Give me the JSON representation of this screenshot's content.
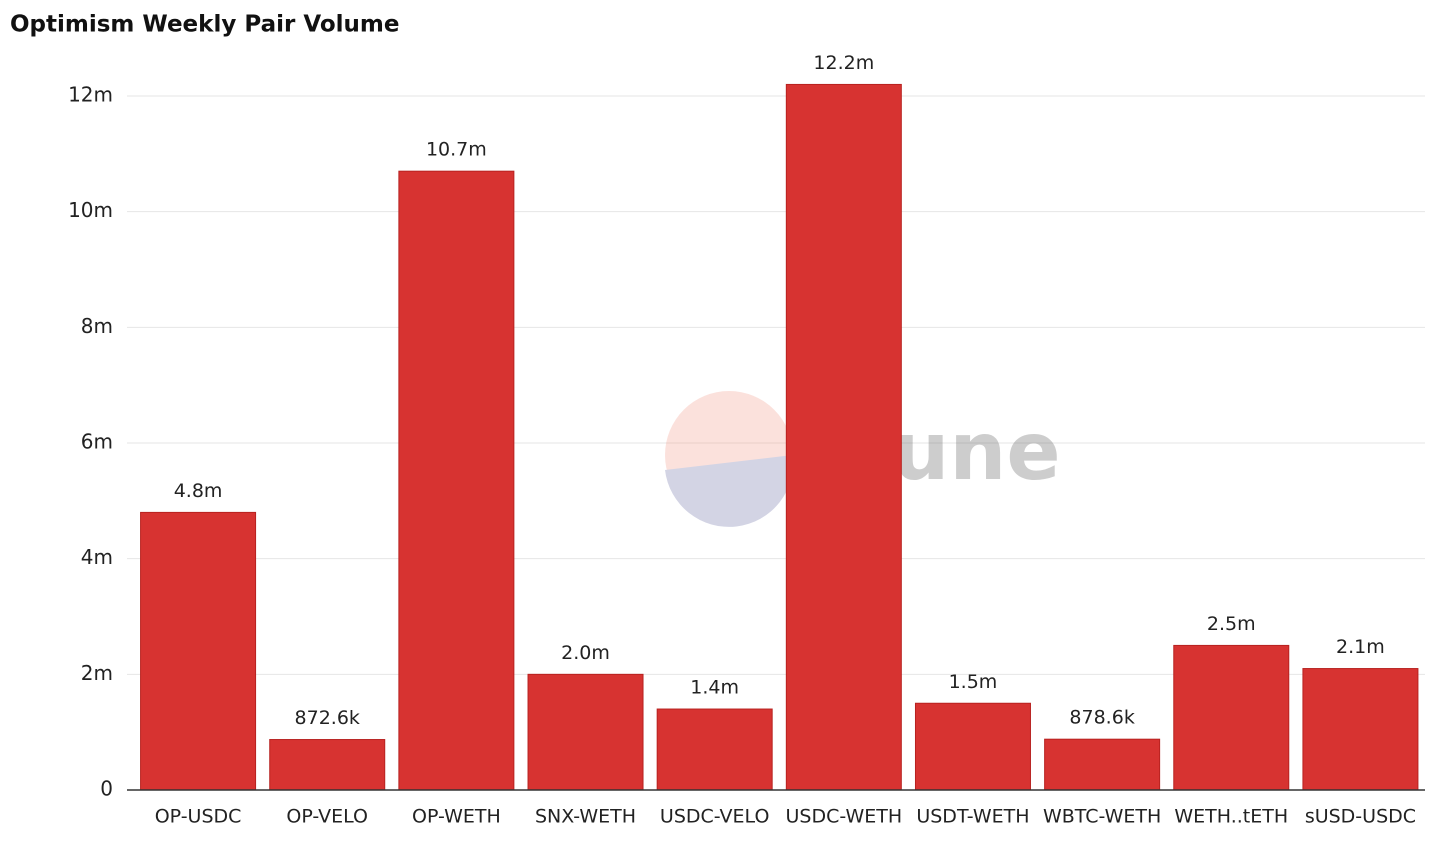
{
  "chart_data": {
    "type": "bar",
    "title": "Optimism Weekly Pair Volume",
    "watermark": "Dune",
    "categories": [
      "OP-USDC",
      "OP-VELO",
      "OP-WETH",
      "SNX-WETH",
      "USDC-VELO",
      "USDC-WETH",
      "USDT-WETH",
      "WBTC-WETH",
      "WETH..tETH",
      "sUSD-USDC"
    ],
    "values": [
      4800000,
      872600,
      10700000,
      2000000,
      1400000,
      12200000,
      1500000,
      878600,
      2500000,
      2100000
    ],
    "value_labels": [
      "4.8m",
      "872.6k",
      "10.7m",
      "2.0m",
      "1.4m",
      "12.2m",
      "1.5m",
      "878.6k",
      "2.5m",
      "2.1m"
    ],
    "color": "#d73331",
    "ylim": [
      0,
      12000000
    ],
    "yticks": [
      0,
      {
        "value": 2000000,
        "label": "2m"
      },
      {
        "value": 4000000,
        "label": "4m"
      },
      {
        "value": 6000000,
        "label": "6m"
      },
      {
        "value": 8000000,
        "label": "8m"
      },
      {
        "value": 10000000,
        "label": "10m"
      },
      {
        "value": 12000000,
        "label": "12m"
      }
    ],
    "grid": true
  }
}
